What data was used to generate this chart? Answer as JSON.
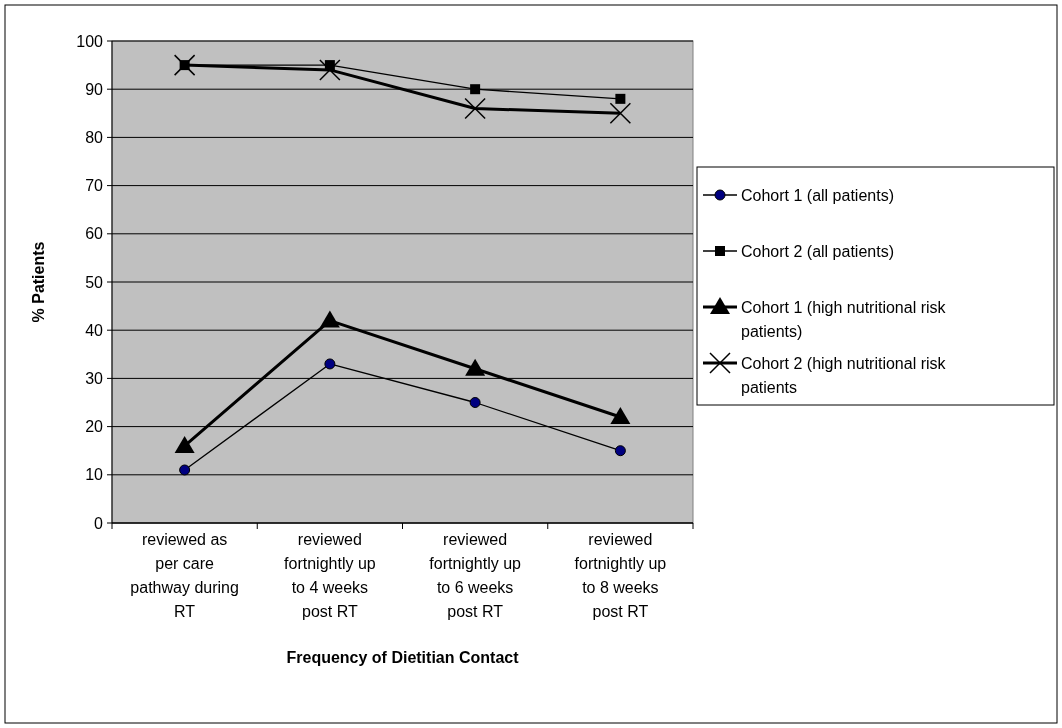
{
  "chart_data": {
    "type": "line",
    "xlabel": "Frequency of Dietitian Contact",
    "ylabel": "% Patients",
    "categories": [
      "reviewed as per care pathway during RT",
      "reviewed fortnightly up to 4 weeks post RT",
      "reviewed fortnightly up to 6 weeks post RT",
      "reviewed fortnightly up to 8 weeks post RT"
    ],
    "series": [
      {
        "name": "Cohort 1 (all patients)",
        "color": "#000080",
        "marker": "circle",
        "values": [
          11,
          33,
          25,
          15
        ]
      },
      {
        "name": "Cohort 2 (all patients)",
        "color": "#000000",
        "marker": "square",
        "values": [
          95,
          95,
          90,
          88
        ]
      },
      {
        "name": "Cohort 1 (high nutritional risk patients)",
        "color": "#000000",
        "marker": "triangle",
        "values": [
          16,
          42,
          32,
          22
        ]
      },
      {
        "name": "Cohort 2 (high nutritional risk patients",
        "color": "#000000",
        "marker": "cross",
        "values": [
          95,
          94,
          86,
          85
        ]
      }
    ],
    "ylim": [
      0,
      100
    ],
    "yticks": [
      0,
      10,
      20,
      30,
      40,
      50,
      60,
      70,
      80,
      90,
      100
    ],
    "grid": "y",
    "legend": "right",
    "line_style": "solid"
  }
}
